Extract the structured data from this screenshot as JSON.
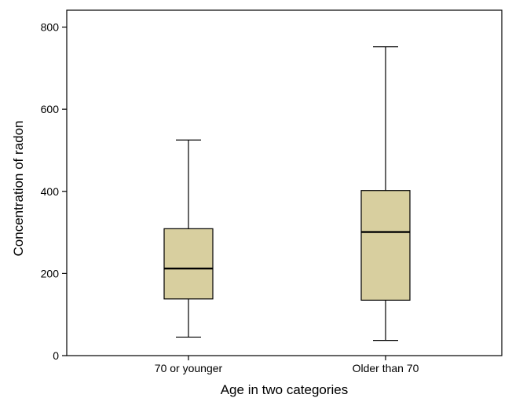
{
  "chart_data": {
    "type": "boxplot",
    "xlabel": "Age in two categories",
    "ylabel": "Concentration of radon",
    "ylim": [
      0,
      800
    ],
    "yticks": [
      0,
      200,
      400,
      600,
      800
    ],
    "box_color": "#d8cf9f",
    "categories": [
      "70 or younger",
      "Older than 70"
    ],
    "boxes": [
      {
        "category": "70 or younger",
        "min": 45,
        "q1": 138,
        "median": 212,
        "q3": 309,
        "max": 525
      },
      {
        "category": "Older than 70",
        "min": 37,
        "q1": 135,
        "median": 301,
        "q3": 402,
        "max": 752
      }
    ]
  }
}
